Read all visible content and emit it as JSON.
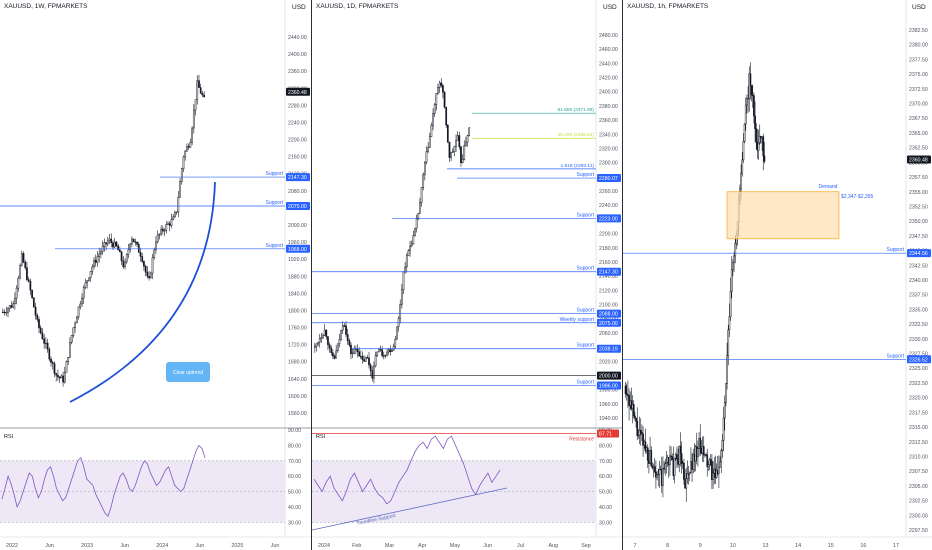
{
  "colors": {
    "up_candle": "#ffffff",
    "down_candle": "#131722",
    "support_line": "#2962ff",
    "label_bg": "#2962ff",
    "rsi_line": "#7e57c2",
    "rsi_band": "#ede7f6",
    "resistance": "#e53935",
    "fib_618": "#26a69a",
    "fib_382": "#cddc39",
    "demand_fill": "#ffe0b2",
    "demand_border": "#ff9800",
    "callout_bg": "#64b5f6",
    "grid": "#eef0f3"
  },
  "panels": [
    {
      "title": "XAUUSD, 1W, FPMARKETS",
      "currency": "USD",
      "current_price_label": "2360.48",
      "rsi_label": "RSI",
      "x_ticks": [
        "2022",
        "Jun",
        "2023",
        "Jun",
        "2024",
        "Jun",
        "2025",
        "Jun"
      ],
      "callout": "Clear uptrend",
      "support_label": "Support",
      "level_labels": [
        "2147.30",
        "2075.00",
        "1968.00"
      ],
      "price_ticks": [
        "2440.00",
        "2400.00",
        "2360.00",
        "2320.00",
        "2280.00",
        "2240.00",
        "2200.00",
        "2160.00",
        "2120.00",
        "2080.00",
        "2040.00",
        "2000.00",
        "1960.00",
        "1920.00",
        "1880.00",
        "1840.00",
        "1800.00",
        "1760.00",
        "1720.00",
        "1680.00",
        "1640.00",
        "1600.00",
        "1560.00"
      ],
      "rsi_ticks": [
        "90.00",
        "80.00",
        "70.00",
        "60.00",
        "50.00",
        "40.00",
        "30.00"
      ]
    },
    {
      "title": "XAUUSD, 1D, FPMARKETS",
      "currency": "USD",
      "rsi_label": "RSI",
      "resistance_label": "Resistance",
      "rsi_level_label": "87.71",
      "trendline_label": "Trendline Support",
      "x_ticks": [
        "2024",
        "Feb",
        "Mar",
        "Apr",
        "May",
        "Jun",
        "Jul",
        "Aug",
        "Sep"
      ],
      "fib_labels": [
        "61.805 (2371.99)",
        "38.205 (2336.54)",
        "1.618 (2293.11)"
      ],
      "support_label": "Support",
      "weekly_support_label": "Weekly support",
      "level_labels": [
        "2280.07",
        "2223.00",
        "2147.30",
        "2088.00",
        "2075.00",
        "2038.19",
        "2000.00",
        "1986.00"
      ],
      "price_ticks": [
        "2480.00",
        "2460.00",
        "2440.00",
        "2420.00",
        "2400.00",
        "2380.00",
        "2360.00",
        "2340.00",
        "2320.00",
        "2300.00",
        "2280.00",
        "2260.00",
        "2240.00",
        "2220.00",
        "2200.00",
        "2180.00",
        "2160.00",
        "2140.00",
        "2120.00",
        "2100.00",
        "2080.00",
        "2060.00",
        "2040.00",
        "2020.00",
        "2000.00",
        "1980.00",
        "1960.00",
        "1940.00"
      ],
      "rsi_ticks": [
        "90.00",
        "80.00",
        "70.00",
        "60.00",
        "50.00",
        "40.00",
        "30.00"
      ]
    },
    {
      "title": "XAUUSD, 1h, FPMARKETS",
      "currency": "USD",
      "current_price_label": "2360.48",
      "demand_label": "Demand",
      "demand_range": "$2,347-$2,355",
      "x_ticks": [
        "7",
        "8",
        "9",
        "10",
        "13",
        "14",
        "15",
        "16",
        "17"
      ],
      "support_label": "Support",
      "level_labels": [
        "2344.56",
        "2326.52"
      ],
      "price_ticks": [
        "2382.50",
        "2380.00",
        "2377.50",
        "2375.00",
        "2372.50",
        "2370.00",
        "2367.50",
        "2365.00",
        "2362.50",
        "2360.00",
        "2357.50",
        "2355.00",
        "2352.50",
        "2350.00",
        "2347.50",
        "2345.00",
        "2342.50",
        "2340.00",
        "2337.50",
        "2335.00",
        "2332.50",
        "2330.00",
        "2327.50",
        "2325.00",
        "2322.50",
        "2320.00",
        "2317.50",
        "2315.00",
        "2312.50",
        "2310.00",
        "2307.50",
        "2305.00",
        "2302.50",
        "2300.00",
        "2297.50"
      ]
    }
  ],
  "chart_data": [
    {
      "type": "candlestick",
      "timeframe": "1W",
      "symbol": "XAUUSD",
      "x_range": [
        "2022",
        "2025 Jun"
      ],
      "ylim": [
        1560,
        2440
      ],
      "path_points": [
        [
          0,
          1810
        ],
        [
          6,
          1830
        ],
        [
          11,
          1950
        ],
        [
          16,
          1860
        ],
        [
          20,
          1780
        ],
        [
          26,
          1710
        ],
        [
          31,
          1650
        ],
        [
          35,
          1640
        ],
        [
          40,
          1760
        ],
        [
          46,
          1860
        ],
        [
          51,
          1920
        ],
        [
          56,
          1960
        ],
        [
          61,
          1990
        ],
        [
          66,
          1970
        ],
        [
          70,
          1920
        ],
        [
          74,
          2000
        ],
        [
          80,
          1950
        ],
        [
          84,
          1880
        ],
        [
          88,
          1990
        ],
        [
          93,
          2020
        ],
        [
          98,
          2040
        ],
        [
          100,
          2060
        ],
        [
          104,
          2200
        ],
        [
          108,
          2240
        ],
        [
          112,
          2380
        ],
        [
          116,
          2340
        ]
      ],
      "levels": [
        {
          "label": "Support",
          "value": 2147.3
        },
        {
          "label": "Support",
          "value": 2075.0
        },
        {
          "label": "Support",
          "value": 1968.0
        }
      ],
      "current_price": 2360.48,
      "rsi": {
        "ylim": [
          25,
          90
        ],
        "levels": [
          70,
          50,
          30
        ],
        "values": [
          45,
          52,
          60,
          55,
          48,
          40,
          44,
          50,
          56,
          62,
          60,
          52,
          46,
          50,
          58,
          64,
          66,
          60,
          52,
          48,
          44,
          46,
          52,
          58,
          64,
          70,
          72,
          66,
          58,
          56,
          54,
          48,
          44,
          40,
          36,
          34,
          40,
          48,
          54,
          60,
          62,
          58,
          52,
          50,
          54,
          60,
          66,
          70,
          68,
          62,
          58,
          54,
          56,
          60,
          64,
          66,
          60,
          54,
          52,
          50,
          52,
          58,
          64,
          70,
          76,
          80,
          78,
          72
        ]
      }
    },
    {
      "type": "candlestick",
      "timeframe": "1D",
      "symbol": "XAUUSD",
      "x_range": [
        "2024",
        "Sep"
      ],
      "ylim": [
        1940,
        2480
      ],
      "path_points": [
        [
          0,
          2040
        ],
        [
          4,
          2055
        ],
        [
          8,
          2065
        ],
        [
          12,
          2030
        ],
        [
          15,
          2025
        ],
        [
          18,
          2045
        ],
        [
          22,
          2080
        ],
        [
          25,
          2050
        ],
        [
          28,
          2030
        ],
        [
          32,
          2040
        ],
        [
          36,
          2020
        ],
        [
          40,
          2025
        ],
        [
          44,
          2000
        ],
        [
          48,
          2040
        ],
        [
          52,
          2030
        ],
        [
          56,
          2035
        ],
        [
          60,
          2040
        ],
        [
          64,
          2080
        ],
        [
          68,
          2150
        ],
        [
          72,
          2180
        ],
        [
          76,
          2200
        ],
        [
          80,
          2240
        ],
        [
          84,
          2300
        ],
        [
          88,
          2340
        ],
        [
          92,
          2390
        ],
        [
          96,
          2420
        ],
        [
          98,
          2400
        ],
        [
          100,
          2360
        ],
        [
          103,
          2310
        ],
        [
          106,
          2320
        ],
        [
          109,
          2340
        ],
        [
          112,
          2300
        ],
        [
          115,
          2330
        ],
        [
          118,
          2350
        ]
      ],
      "levels": [
        {
          "label": "Support",
          "value": 2280.07
        },
        {
          "label": "Support",
          "value": 2223.0
        },
        {
          "label": "Support",
          "value": 2147.3
        },
        {
          "label": "Support",
          "value": 2088.0
        },
        {
          "label": "Weekly support",
          "value": 2075.0
        },
        {
          "label": "Support",
          "value": 2038.19
        },
        {
          "label": "",
          "value": 2000.0
        },
        {
          "label": "Support",
          "value": 1986.0
        }
      ],
      "fib_levels": [
        {
          "label": "61.805 (2371.99)",
          "value": 2371.99
        },
        {
          "label": "38.205 (2336.54)",
          "value": 2336.54
        },
        {
          "label": "1.618 (2293.11)",
          "value": 2293.11
        }
      ],
      "rsi": {
        "ylim": [
          25,
          90
        ],
        "resistance": 87.71,
        "levels": [
          70,
          50,
          30
        ],
        "values": [
          58,
          54,
          50,
          56,
          60,
          52,
          48,
          44,
          50,
          58,
          62,
          56,
          50,
          54,
          58,
          52,
          48,
          46,
          42,
          44,
          50,
          56,
          60,
          64,
          70,
          76,
          80,
          82,
          78,
          84,
          86,
          82,
          78,
          84,
          86,
          80,
          74,
          68,
          60,
          52,
          48,
          54,
          58,
          62,
          56,
          60,
          64
        ]
      }
    },
    {
      "type": "candlestick",
      "timeframe": "1h",
      "symbol": "XAUUSD",
      "x_range": [
        "7",
        "17"
      ],
      "ylim": [
        2297.5,
        2382.5
      ],
      "path_points": [
        [
          0,
          2322
        ],
        [
          4,
          2318
        ],
        [
          8,
          2314
        ],
        [
          12,
          2312
        ],
        [
          16,
          2310
        ],
        [
          20,
          2308
        ],
        [
          24,
          2306
        ],
        [
          28,
          2310
        ],
        [
          32,
          2308
        ],
        [
          36,
          2311
        ],
        [
          40,
          2305
        ],
        [
          44,
          2309
        ],
        [
          48,
          2312
        ],
        [
          52,
          2310
        ],
        [
          56,
          2308
        ],
        [
          60,
          2306
        ],
        [
          64,
          2312
        ],
        [
          66,
          2320
        ],
        [
          68,
          2330
        ],
        [
          70,
          2340
        ],
        [
          72,
          2345
        ],
        [
          74,
          2350
        ],
        [
          76,
          2356
        ],
        [
          78,
          2362
        ],
        [
          80,
          2370
        ],
        [
          82,
          2374
        ],
        [
          84,
          2371
        ],
        [
          86,
          2366
        ],
        [
          88,
          2362
        ],
        [
          90,
          2366
        ],
        [
          92,
          2360
        ]
      ],
      "levels": [
        {
          "label": "Support",
          "value": 2344.56
        },
        {
          "label": "Support",
          "value": 2326.52
        }
      ],
      "zone": {
        "label": "Demand",
        "range": "$2,347-$2,355",
        "low": 2347,
        "high": 2355
      },
      "current_price": 2360.48
    }
  ]
}
